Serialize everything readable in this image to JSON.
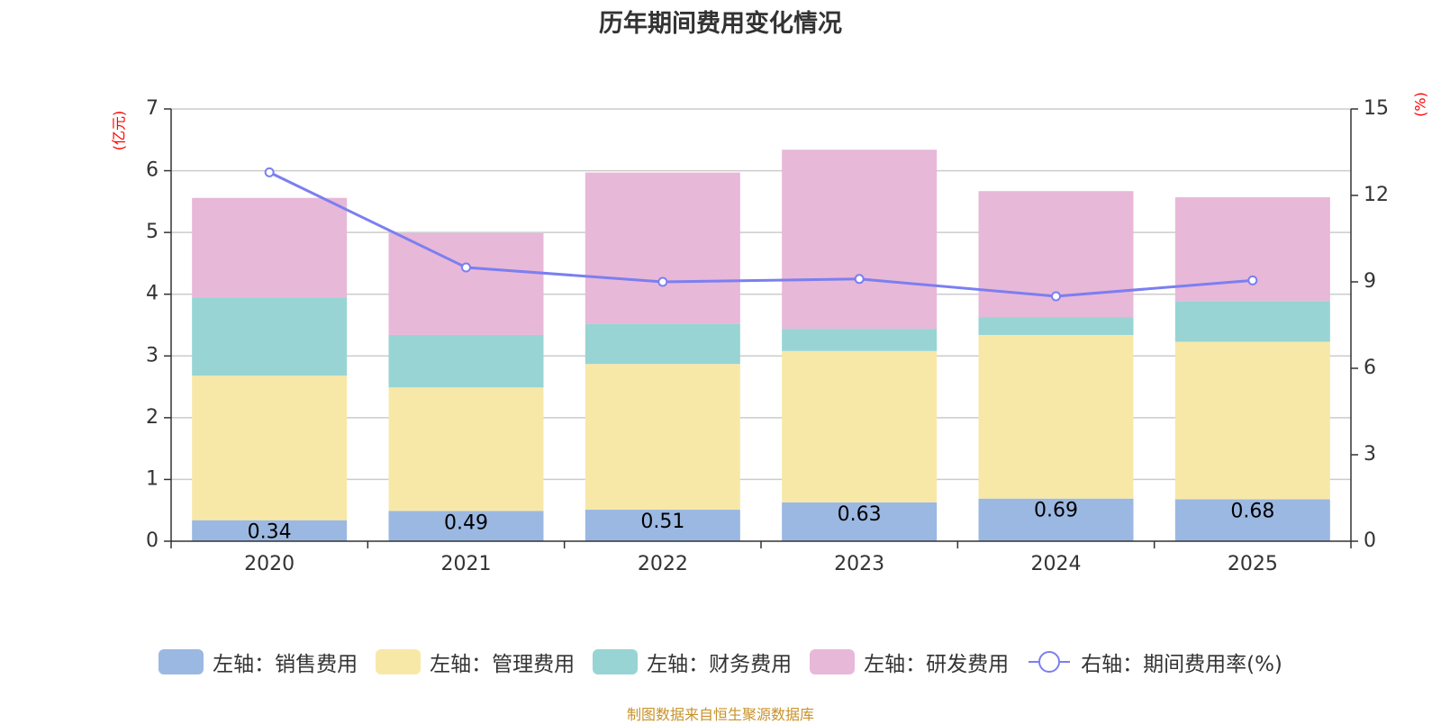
{
  "chart_data": {
    "type": "bar",
    "title": "历年期间费用变化情况",
    "categories": [
      "2020",
      "2021",
      "2022",
      "2023",
      "2024",
      "2025"
    ],
    "series": [
      {
        "name": "左轴：销售费用",
        "axis": "left",
        "stack": true,
        "color": "#9bb8e2",
        "values": [
          0.34,
          0.49,
          0.51,
          0.63,
          0.69,
          0.68
        ]
      },
      {
        "name": "左轴：管理费用",
        "axis": "left",
        "stack": true,
        "color": "#f8e8a8",
        "values": [
          2.34,
          2.0,
          2.36,
          2.45,
          2.65,
          2.55
        ]
      },
      {
        "name": "左轴：财务费用",
        "axis": "left",
        "stack": true,
        "color": "#98d4d4",
        "values": [
          1.27,
          0.85,
          0.65,
          0.36,
          0.29,
          0.66
        ]
      },
      {
        "name": "左轴：研发费用",
        "axis": "left",
        "stack": true,
        "color": "#e8b8d8",
        "values": [
          1.61,
          1.65,
          2.45,
          2.9,
          2.04,
          1.68
        ]
      },
      {
        "name": "右轴：期间费用率(%)",
        "axis": "right",
        "type": "line",
        "color": "#7b7ff0",
        "values": [
          12.8,
          9.5,
          9.0,
          9.1,
          8.5,
          9.05
        ]
      }
    ],
    "left_axis": {
      "unit": "(亿元)",
      "ylim": [
        0,
        7
      ],
      "ticks": [
        "0",
        "1",
        "2",
        "3",
        "4",
        "5",
        "6",
        "7"
      ]
    },
    "right_axis": {
      "unit": "(%)",
      "ylim": [
        0,
        15
      ],
      "ticks": [
        "0",
        "3",
        "6",
        "9",
        "12",
        "15"
      ]
    },
    "data_labels": [
      "0.34",
      "0.49",
      "0.51",
      "0.63",
      "0.69",
      "0.68"
    ],
    "legend_position": "bottom",
    "grid": true,
    "source": "制图数据来自恒生聚源数据库"
  }
}
